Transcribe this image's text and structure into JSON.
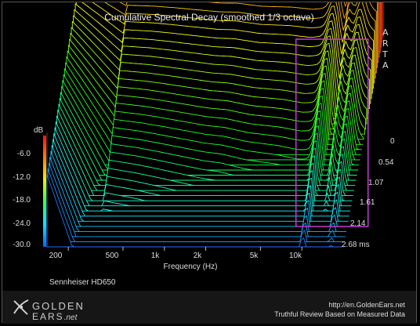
{
  "chart_data": {
    "type": "area",
    "title": "Cumulative Spectral Decay (smoothed 1/3 octave)",
    "xlabel": "Frequency (Hz)",
    "ylabel": "dB",
    "zlabel": "ms",
    "x_scale": "log",
    "x_ticks": [
      "200",
      "500",
      "1k",
      "2k",
      "5k",
      "10k"
    ],
    "x_tick_values": [
      200,
      500,
      1000,
      2000,
      5000,
      10000
    ],
    "xlim": [
      140,
      20000
    ],
    "y_ticks": [
      "-6.0",
      "-12.0",
      "-18.0",
      "-24.0",
      "-30.0"
    ],
    "y_tick_values": [
      -6,
      -12,
      -18,
      -24,
      -30
    ],
    "ylim": [
      -30,
      0
    ],
    "t_ticks": [
      "0",
      "0.54",
      "1.07",
      "1.61",
      "2.14",
      "2.68 ms"
    ],
    "t_tick_values": [
      0,
      0.54,
      1.07,
      1.61,
      2.14,
      2.68
    ],
    "slices": 42,
    "highlight_region_hz": [
      9000,
      20000
    ],
    "approx_initial_response": {
      "freq_hz": [
        140,
        200,
        300,
        500,
        700,
        1000,
        1500,
        2000,
        3000,
        5000,
        7000,
        9000,
        10500,
        13000,
        16000,
        20000
      ],
      "db": [
        -1.2,
        -1.0,
        -0.9,
        -0.7,
        -0.8,
        -1.0,
        -1.2,
        -1.0,
        -1.5,
        -1.3,
        -1.6,
        -1.0,
        -0.6,
        -2.5,
        -1.0,
        -4.0
      ]
    }
  },
  "watermark": "ARTA",
  "arta_letters": [
    "A",
    "R",
    "T",
    "A"
  ],
  "headphone_model": "Sennheiser HD650",
  "brand": {
    "line1": "GOLDEN",
    "line2": "EARS",
    "suffix": ".net"
  },
  "footer_url": "http://en.GoldenEars.net",
  "footer_tagline": "Truthful Review Based on Measured Data",
  "colors": {
    "background": "#000000",
    "highlight_box": "#c23ad6",
    "frame": "#3a8c2a"
  }
}
